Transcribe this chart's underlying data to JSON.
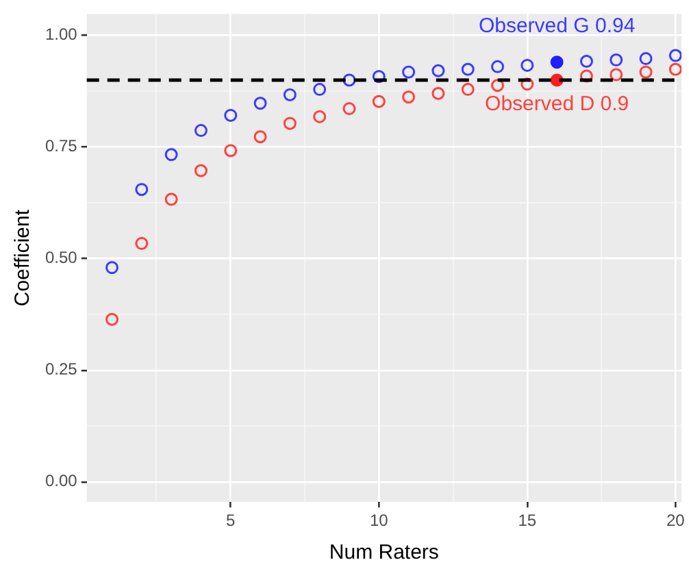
{
  "chart_data": {
    "type": "scatter",
    "xlabel": "Num Raters",
    "ylabel": "Coefficient",
    "x": [
      1,
      2,
      3,
      4,
      5,
      6,
      7,
      8,
      9,
      10,
      11,
      12,
      13,
      14,
      15,
      16,
      17,
      18,
      19,
      20
    ],
    "series": [
      {
        "color": "#3b3bff",
        "values": [
          0.48,
          0.655,
          0.733,
          0.787,
          0.821,
          0.848,
          0.867,
          0.879,
          0.9,
          0.908,
          0.918,
          0.921,
          0.924,
          0.93,
          0.933,
          null,
          0.942,
          0.945,
          0.948,
          0.955
        ]
      },
      {
        "color": "#ff4040",
        "values": [
          0.364,
          0.534,
          0.633,
          0.697,
          0.742,
          0.773,
          0.803,
          0.818,
          0.836,
          0.852,
          0.862,
          0.87,
          0.879,
          0.888,
          0.891,
          null,
          0.909,
          0.912,
          0.918,
          0.924
        ]
      },
      {
        "color": "#1f1fff",
        "x": [
          16
        ],
        "values": [
          0.94
        ]
      },
      {
        "color": "#ff1f1f",
        "x": [
          16
        ],
        "values": [
          0.9
        ]
      }
    ],
    "annotations": [
      {
        "text": "Observed G 0.94",
        "x": 16,
        "y": 0.94
      },
      {
        "text": "Observed D 0.9",
        "x": 16,
        "y": 0.9
      }
    ],
    "ref_lines": [
      {
        "axis": "y",
        "value": 0.9,
        "color": "#000000",
        "line_style": "dashed"
      }
    ],
    "xlim": [
      0.15,
      20.2
    ],
    "ylim": [
      -0.045,
      1.048
    ],
    "xticks": [
      {
        "value": 2.5,
        "label": null
      },
      5,
      {
        "value": 7.5,
        "label": null
      },
      10,
      {
        "value": 12.5,
        "label": null
      },
      15,
      {
        "value": 17.5,
        "label": null
      },
      20
    ],
    "yticks": [
      {
        "value": 0,
        "label": "0.00"
      },
      {
        "value": 0.125,
        "label": null
      },
      {
        "value": 0.25,
        "label": "0.25"
      },
      {
        "value": 0.375,
        "label": null
      },
      {
        "value": 0.5,
        "label": "0.50"
      },
      {
        "value": 0.625,
        "label": null
      },
      {
        "value": 0.75,
        "label": "0.75"
      },
      {
        "value": 0.875,
        "label": null
      },
      {
        "value": 1,
        "label": "1.00"
      }
    ],
    "grid": true,
    "marker": "circle",
    "legend": false
  }
}
